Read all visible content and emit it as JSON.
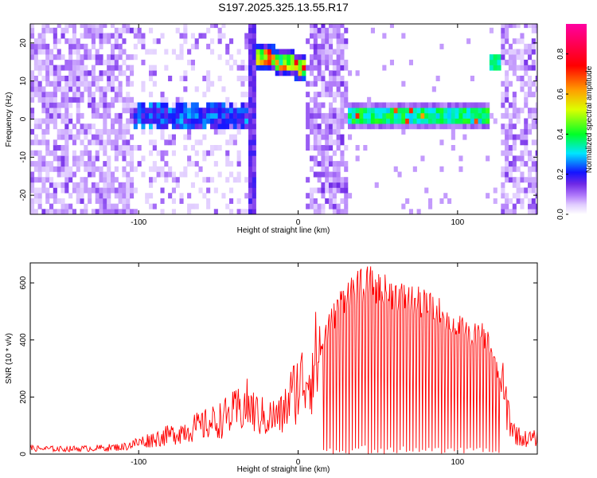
{
  "title": "S197.2025.325.13.55.R17",
  "chart_data": [
    {
      "type": "heatmap",
      "xlabel": "Height of straight line (km)",
      "ylabel": "Frequency (Hz)",
      "xlim": [
        -168,
        150
      ],
      "ylim": [
        -25,
        25
      ],
      "x_ticks": [
        -100,
        0,
        100
      ],
      "y_ticks": [
        -20,
        -10,
        0,
        10,
        20
      ],
      "colorbar": {
        "label": "Normalized spectral amplitude",
        "range": [
          0,
          0.95
        ],
        "ticks": [
          0.0,
          0.2,
          0.4,
          0.6,
          0.8
        ],
        "tick_labels": [
          "0.0",
          "0.2",
          "0.4",
          "0.6",
          "0.8"
        ]
      },
      "features": [
        {
          "name": "noise region",
          "x_range": [
            -168,
            -105
          ],
          "amplitude": "low, broadband"
        },
        {
          "name": "tone near 0 Hz",
          "x_range": [
            -110,
            -33
          ],
          "freq_hz": 0,
          "amplitude": "moderate"
        },
        {
          "name": "carrier near 15 Hz",
          "x_range": [
            -27,
            2
          ],
          "freq_hz_start": 16,
          "freq_hz_end": 13,
          "amplitude": "high"
        },
        {
          "name": "noise region",
          "x_range": [
            7,
            28
          ],
          "amplitude": "moderate, broadband"
        },
        {
          "name": "carrier at 0 Hz",
          "x_range": [
            31,
            117
          ],
          "freq_hz": 0,
          "amplitude": "high"
        },
        {
          "name": "carrier near 14 Hz",
          "x_range": [
            118,
            127
          ],
          "freq_hz": 14,
          "amplitude": "moderate"
        },
        {
          "name": "noise region",
          "x_range": [
            128,
            150
          ],
          "amplitude": "moderate, broadband"
        }
      ]
    },
    {
      "type": "line",
      "xlabel": "Height of straight line (km)",
      "ylabel": "SNR (10 * v/v)",
      "xlim": [
        -168,
        150
      ],
      "ylim": [
        0,
        670
      ],
      "x_ticks": [
        -100,
        0,
        100
      ],
      "y_ticks": [
        0,
        200,
        400,
        600
      ],
      "series": [
        {
          "name": "SNR",
          "color": "#ff0000",
          "x": [
            -168,
            -150,
            -130,
            -110,
            -100,
            -90,
            -80,
            -70,
            -60,
            -50,
            -40,
            -32,
            -25,
            -20,
            -10,
            -5,
            0,
            5,
            10,
            15,
            20,
            25,
            30,
            35,
            40,
            45,
            50,
            55,
            60,
            70,
            80,
            90,
            100,
            110,
            115,
            120,
            125,
            130,
            135,
            140,
            150
          ],
          "y": [
            22,
            20,
            22,
            28,
            45,
            60,
            75,
            95,
            110,
            130,
            160,
            190,
            150,
            140,
            150,
            220,
            265,
            300,
            350,
            420,
            480,
            540,
            590,
            610,
            620,
            630,
            610,
            600,
            590,
            570,
            550,
            520,
            470,
            440,
            450,
            410,
            300,
            200,
            90,
            60,
            60
          ]
        }
      ]
    }
  ]
}
